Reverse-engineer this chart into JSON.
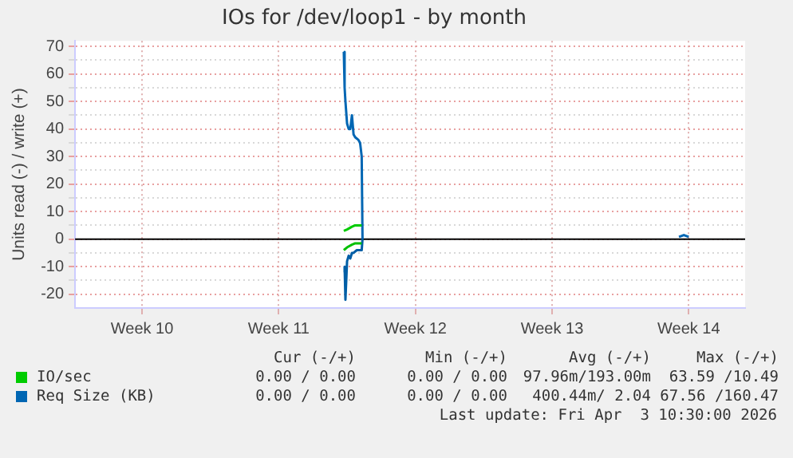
{
  "chart_data": {
    "type": "line",
    "title": "IOs for /dev/loop1 - by month",
    "ylabel": "Units read (-) / write (+)",
    "xlim": [
      "2026-02-26T13:40",
      "2026-04-01T21:20"
    ],
    "xticks": [
      {
        "value": "2026-03-02",
        "label": "Week 10"
      },
      {
        "value": "2026-03-09",
        "label": "Week 11"
      },
      {
        "value": "2026-03-16",
        "label": "Week 12"
      },
      {
        "value": "2026-03-23",
        "label": "Week 13"
      },
      {
        "value": "2026-03-30",
        "label": "Week 14"
      }
    ],
    "ylim": [
      -25,
      72
    ],
    "yticks": [
      -20,
      {
        "value": -15,
        "label": null
      },
      -10,
      {
        "value": -5,
        "label": null
      },
      0,
      {
        "value": 5,
        "label": null
      },
      10,
      {
        "value": 15,
        "label": null
      },
      20,
      {
        "value": 25,
        "label": null
      },
      30,
      {
        "value": 35,
        "label": null
      },
      40,
      {
        "value": 45,
        "label": null
      },
      50,
      {
        "value": 55,
        "label": null
      },
      60,
      {
        "value": 65,
        "label": null
      },
      70
    ],
    "series": [
      {
        "name": "IO/sec",
        "color": "#00cc00",
        "x": [
          "2026-03-12T08:00",
          "2026-03-12T12:00",
          "2026-03-12T18:00",
          "2026-03-12T22:00",
          "2026-03-13T02:00",
          "2026-03-13T06:00"
        ],
        "values": [
          3,
          3.5,
          4.5,
          5,
          5,
          5
        ]
      },
      {
        "color": "#00c000",
        "x": [
          "2026-03-12T08:00",
          "2026-03-12T12:00",
          "2026-03-12T18:00",
          "2026-03-12T22:00",
          "2026-03-13T02:00",
          "2026-03-13T06:00"
        ],
        "values": [
          -4,
          -3,
          -2,
          -1.5,
          -1.5,
          -1.5
        ]
      },
      {
        "name": "Req Size (KB)",
        "color": "#0066b3",
        "x": [
          "2026-03-12T08:00",
          "2026-03-12T09:00",
          "2026-03-12T10:00",
          "2026-03-12T12:00",
          "2026-03-12T14:00",
          "2026-03-12T16:00",
          "2026-03-12T18:00",
          "2026-03-12T20:00",
          "2026-03-12T22:00",
          "2026-03-13T02:00",
          "2026-03-13T04:00",
          "2026-03-13T06:00",
          "2026-03-13T07:00"
        ],
        "values": [
          68,
          55,
          50,
          42,
          40,
          40,
          45,
          38,
          37,
          36,
          35,
          30,
          0
        ]
      },
      {
        "color": "#0066b3",
        "x": [
          "2026-03-29T12:00",
          "2026-03-29T18:00",
          "2026-03-30T00:00"
        ],
        "values": [
          0.8,
          1.5,
          0.8
        ]
      },
      {
        "color": "#005ea6",
        "x": [
          "2026-03-12T08:00",
          "2026-03-12T09:00",
          "2026-03-12T10:00",
          "2026-03-12T12:00",
          "2026-03-12T14:00",
          "2026-03-12T16:00",
          "2026-03-12T18:00",
          "2026-03-12T20:00",
          "2026-03-13T00:00",
          "2026-03-13T06:00",
          "2026-03-13T07:00"
        ],
        "values": [
          -12,
          -10,
          -22,
          -8,
          -6,
          -7,
          -5,
          -5,
          -4,
          -4,
          0
        ]
      }
    ],
    "ref_lines": [
      {
        "axis": "y",
        "value": 0,
        "color": "#000000"
      }
    ],
    "grid": true,
    "legend": "bottom",
    "marker": "none",
    "line_style": "solid",
    "annotations": [
      "Cur (-/+)",
      "Min (-/+)",
      "Avg (-/+)",
      "Max (-/+)",
      "0.00 / 0.00",
      "0.00 / 0.00",
      "97.96m/193.00m",
      "63.59 /10.49",
      "0.00 / 0.00",
      "0.00 / 0.00",
      "400.44m/ 2.04",
      "67.56 /160.47",
      "Last update: Fri Apr  3 10:30:00 2026"
    ]
  }
}
